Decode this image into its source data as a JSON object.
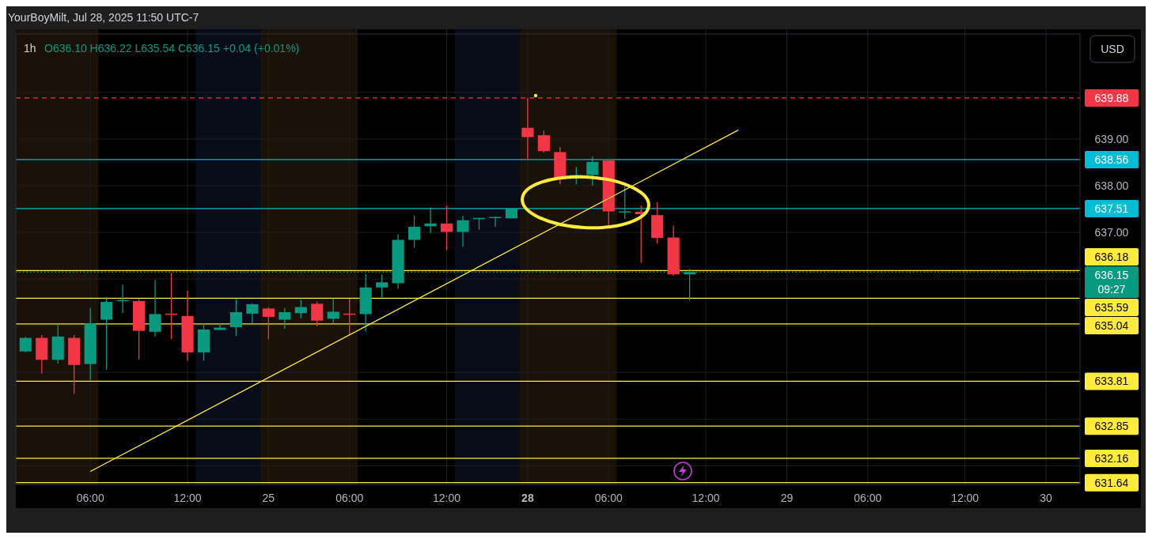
{
  "chart_data": {
    "type": "candlestick",
    "title": "1h",
    "subtitle": "O636.10 H636.22 L635.54 C636.15 +0.04 (+0.01%)",
    "annotations": [
      "YourBoyMilt, Jul 28, 2025 11:50 UTC-7",
      "USD",
      "09:27"
    ],
    "categories": [
      null,
      null,
      null,
      null,
      "06:00",
      null,
      null,
      null,
      null,
      null,
      "12:00",
      null,
      null,
      null,
      null,
      "25",
      null,
      null,
      null,
      null,
      "06:00",
      null,
      null,
      null,
      null,
      null,
      "12:00",
      null,
      null,
      null,
      null,
      "28",
      null,
      null,
      null,
      null,
      "06:00",
      null,
      null,
      null,
      null,
      null,
      "12:00",
      null,
      null,
      null,
      null,
      "29",
      null,
      null,
      null,
      null,
      "06:00",
      null,
      null,
      null,
      null,
      null,
      "12:00",
      null,
      null,
      null,
      null,
      "30",
      null,
      null
    ],
    "ylim": [
      631.6,
      641.25
    ],
    "yticks": [
      {
        "value": 632,
        "label": null
      },
      {
        "value": 633,
        "label": null
      },
      {
        "value": 634,
        "label": null
      },
      {
        "value": 635,
        "label": null
      },
      {
        "value": 636,
        "label": null
      },
      {
        "value": 637,
        "label": "637.00"
      },
      {
        "value": 638,
        "label": "638.00"
      },
      {
        "value": 639,
        "label": "639.00"
      },
      {
        "value": 640,
        "label": null
      }
    ],
    "grid": true,
    "series": [
      {
        "type": "candlestick",
        "ohlc": [
          [
            634.45,
            634.76,
            634.43,
            634.74
          ],
          [
            634.74,
            634.8,
            633.98,
            634.27
          ],
          [
            634.27,
            635.03,
            634.19,
            634.77
          ],
          [
            634.74,
            634.8,
            633.54,
            634.16
          ],
          [
            634.18,
            635.38,
            633.83,
            635.05
          ],
          [
            635.13,
            635.62,
            634.06,
            635.51
          ],
          [
            635.54,
            635.88,
            635.27,
            635.55
          ],
          [
            635.53,
            635.57,
            634.28,
            634.89
          ],
          [
            634.87,
            635.98,
            634.77,
            635.25
          ],
          [
            635.26,
            636.14,
            634.71,
            635.24
          ],
          [
            635.21,
            635.75,
            634.25,
            634.43
          ],
          [
            634.43,
            635.05,
            634.25,
            634.92
          ],
          [
            634.91,
            635.06,
            634.91,
            634.96
          ],
          [
            634.97,
            635.57,
            634.78,
            635.29
          ],
          [
            635.26,
            635.48,
            635.06,
            635.46
          ],
          [
            635.37,
            635.4,
            634.71,
            635.19
          ],
          [
            635.13,
            635.38,
            634.93,
            635.29
          ],
          [
            635.27,
            635.56,
            635.16,
            635.4
          ],
          [
            635.47,
            635.52,
            634.99,
            635.11
          ],
          [
            635.15,
            635.58,
            635.06,
            635.3
          ],
          [
            635.26,
            635.58,
            634.8,
            635.24
          ],
          [
            635.25,
            636.11,
            634.87,
            635.82
          ],
          [
            635.82,
            636.1,
            635.61,
            635.93
          ],
          [
            635.91,
            636.96,
            635.79,
            636.84
          ],
          [
            636.84,
            637.36,
            636.67,
            637.12
          ],
          [
            637.13,
            637.54,
            636.98,
            637.19
          ],
          [
            637.19,
            637.57,
            636.62,
            637.01
          ],
          [
            637.01,
            637.35,
            636.69,
            637.26
          ],
          [
            637.29,
            637.31,
            637.06,
            637.31
          ],
          [
            637.31,
            637.34,
            637.12,
            637.33
          ],
          [
            637.3,
            637.51,
            637.3,
            637.51
          ],
          [
            639.24,
            639.88,
            638.56,
            639.04
          ],
          [
            639.08,
            639.18,
            638.71,
            638.74
          ],
          [
            638.72,
            638.83,
            638.03,
            638.16
          ],
          [
            638.16,
            638.4,
            638.03,
            638.23
          ],
          [
            638.23,
            638.62,
            638.0,
            638.51
          ],
          [
            638.54,
            638.54,
            637.15,
            637.45
          ],
          [
            637.44,
            638.03,
            637.29,
            637.45
          ],
          [
            637.44,
            637.57,
            636.35,
            637.39
          ],
          [
            637.37,
            637.65,
            636.76,
            636.88
          ],
          [
            636.89,
            637.15,
            636.07,
            636.1
          ],
          [
            636.1,
            636.22,
            635.54,
            636.15
          ],
          null,
          null,
          null,
          null,
          null,
          null,
          null,
          null,
          null,
          null,
          null,
          null,
          null,
          null,
          null,
          null,
          null,
          null,
          null,
          null,
          null,
          null,
          null,
          null
        ],
        "colors": [
          "#089981",
          "#f23645",
          "#089981",
          "#f23645",
          "#089981",
          "#089981",
          "#089981",
          "#f23645",
          "#089981",
          "#f23645",
          "#f23645",
          "#089981",
          "#089981",
          "#089981",
          "#089981",
          "#f23645",
          "#089981",
          "#089981",
          "#f23645",
          "#089981",
          "#f23645",
          "#089981",
          "#089981",
          "#089981",
          "#089981",
          "#089981",
          "#f23645",
          "#089981",
          "#089981",
          "#089981",
          "#089981",
          "#f23645",
          "#f23645",
          "#f23645",
          "#089981",
          "#089981",
          "#f23645",
          "#089981",
          "#f23645",
          "#f23645",
          "#f23645",
          "#089981",
          null,
          null,
          null,
          null,
          null,
          null,
          null,
          null,
          null,
          null,
          null,
          null,
          null,
          null,
          null,
          null,
          null,
          null,
          null,
          null,
          null,
          null,
          null,
          null
        ]
      },
      {
        "type": "line",
        "color": "#ffeb3b",
        "values": [
          null,
          null,
          null,
          null,
          631.88,
          null,
          null,
          null,
          null,
          null,
          null,
          null,
          null,
          null,
          null,
          null,
          null,
          null,
          null,
          null,
          null,
          null,
          null,
          null,
          null,
          null,
          null,
          null,
          null,
          null,
          null,
          null,
          null,
          null,
          null,
          null,
          null,
          null,
          null,
          null,
          null,
          null,
          null,
          null,
          639.19,
          null,
          null,
          null,
          null,
          null,
          null,
          null,
          null,
          null,
          null,
          null,
          null,
          null,
          null,
          null,
          null,
          null,
          null,
          null,
          null,
          null
        ]
      }
    ],
    "ref_lines": [
      {
        "axis": "y",
        "value": 639.88,
        "label": "639.88",
        "color": "#f23645",
        "line_style": "dashed"
      },
      {
        "axis": "y",
        "value": 638.56,
        "label": "638.56",
        "color": "#00bcd4",
        "line_style": "solid"
      },
      {
        "axis": "y",
        "value": 637.51,
        "label": "637.51",
        "color": "#00bcd4",
        "line_style": "solid"
      },
      {
        "axis": "y",
        "value": 636.18,
        "label": "636.18",
        "color": "#ffeb3b",
        "line_style": "solid"
      },
      {
        "axis": "y",
        "value": 636.15,
        "label": "636.15",
        "color": "#089981",
        "line_style": "dotted"
      },
      {
        "axis": "y",
        "value": 635.59,
        "label": "635.59",
        "color": "#ffeb3b",
        "line_style": "solid"
      },
      {
        "axis": "y",
        "value": 635.04,
        "label": "635.04",
        "color": "#ffeb3b",
        "line_style": "solid"
      },
      {
        "axis": "y",
        "value": 633.81,
        "label": "633.81",
        "color": "#ffeb3b",
        "line_style": "solid"
      },
      {
        "axis": "y",
        "value": 632.85,
        "label": "632.85",
        "color": "#ffeb3b",
        "line_style": "solid"
      },
      {
        "axis": "y",
        "value": 632.16,
        "label": "632.16",
        "color": "#ffeb3b",
        "line_style": "solid"
      },
      {
        "axis": "y",
        "value": 631.64,
        "label": "631.64",
        "color": "#ffeb3b",
        "line_style": "solid"
      }
    ]
  }
}
